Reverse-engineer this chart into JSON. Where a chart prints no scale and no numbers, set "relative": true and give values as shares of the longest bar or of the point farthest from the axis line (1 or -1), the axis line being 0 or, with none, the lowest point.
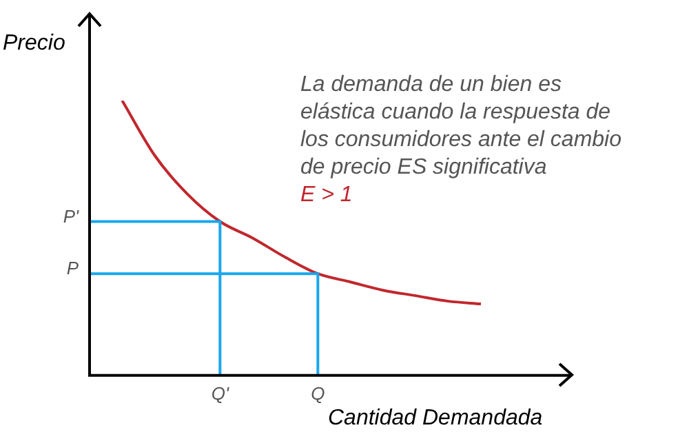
{
  "chart_data": {
    "type": "line",
    "relative": true,
    "xlabel": "Cantidad Demandada",
    "ylabel": "Precio",
    "grid": false,
    "legend": false,
    "marker": "none",
    "categories": [
      null,
      null,
      null,
      null,
      "Q'",
      null,
      null,
      "Q",
      null,
      null,
      null,
      null,
      null
    ],
    "series": [
      {
        "color": "#c1272d",
        "values": [
          null,
          1,
          0.8,
          0.66,
          0.56,
          0.5,
          0.43,
          0.37,
          0.34,
          0.31,
          0.29,
          0.27,
          0.26
        ]
      }
    ],
    "annotations": [
      "P'",
      "P",
      "La demanda de un bien es elástica cuando la respuesta de los consumidores ante el cambio de precio ES significativa",
      "E > 1"
    ]
  }
}
